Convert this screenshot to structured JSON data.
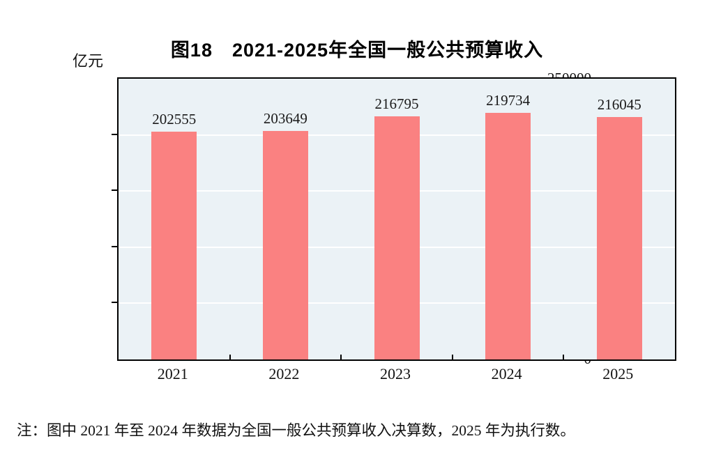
{
  "chart_data": {
    "type": "bar",
    "title": "图18　2021-2025年全国一般公共预算收入",
    "unit_label": "亿元",
    "categories": [
      "2021",
      "2022",
      "2023",
      "2024",
      "2025"
    ],
    "values": [
      202555,
      203649,
      216795,
      219734,
      216045
    ],
    "data_labels": [
      "202555",
      "203649",
      "216795",
      "219734",
      "216045"
    ],
    "ylim": [
      0,
      250000
    ],
    "yticks": [
      0,
      50000,
      100000,
      150000,
      200000,
      250000
    ],
    "grid": true,
    "legend": "none",
    "bar_color": "#fa8181",
    "plot_bg_color": "#ebf2f6",
    "gridline_color": "#ffffff",
    "axis_color": "#000000",
    "label_color": "#1a1a1a"
  },
  "note": "注：图中 2021 年至 2024 年数据为全国一般公共预算收入决算数，2025 年为执行数。"
}
